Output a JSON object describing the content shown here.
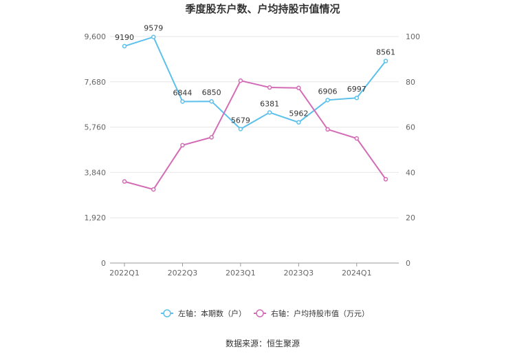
{
  "chart_data": {
    "type": "line",
    "title": "季度股东户数、户均持股市值情况",
    "x": [
      "2022Q1",
      "2022Q2",
      "2022Q3",
      "2022Q4",
      "2023Q1",
      "2023Q2",
      "2023Q3",
      "2023Q4",
      "2024Q1",
      "2024Q2"
    ],
    "x_tick_labels": [
      "2022Q1",
      "2022Q3",
      "2023Q1",
      "2023Q3",
      "2024Q1"
    ],
    "y_left": {
      "ylim": [
        0,
        9600
      ],
      "ticks": [
        "0",
        "1,920",
        "3,840",
        "5,760",
        "7,680",
        "9,600"
      ]
    },
    "y_right": {
      "ylim": [
        0,
        100
      ],
      "ticks": [
        "0",
        "20",
        "40",
        "60",
        "80",
        "100"
      ]
    },
    "series": [
      {
        "name": "左轴：本期数（户）",
        "axis": "left",
        "color": "#5bc0eb",
        "values": [
          9190,
          9579,
          6844,
          6850,
          5679,
          6381,
          5962,
          6906,
          6997,
          8561
        ],
        "labels": [
          "9190",
          "9579",
          "6844",
          "6850",
          "5679",
          "6381",
          "5962",
          "6906",
          "6997",
          "8561"
        ]
      },
      {
        "name": "右轴：户均持股市值（万元）",
        "axis": "right",
        "color": "#d36bb6",
        "values": [
          36.0,
          32.5,
          52.0,
          55.5,
          80.5,
          77.5,
          77.3,
          59.0,
          55.0,
          37.0
        ]
      }
    ],
    "grid": true,
    "legend_position": "bottom"
  },
  "source": "数据来源：恒生聚源"
}
